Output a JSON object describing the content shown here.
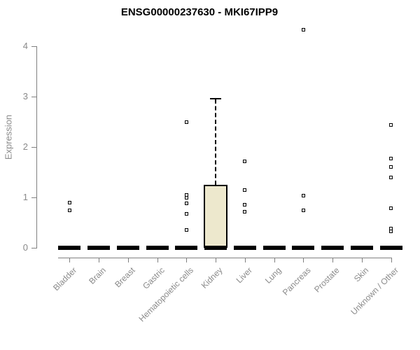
{
  "chart_data": {
    "type": "boxplot",
    "title": "ENSG00000237630 - MKI67IPP9",
    "ylabel": "Expression",
    "xlabel": "",
    "ylim": [
      0,
      4
    ],
    "yticks": [
      0,
      1,
      2,
      3,
      4
    ],
    "grid": false,
    "legend": false,
    "categories": [
      "Bladder",
      "Brain",
      "Breast",
      "Gastric",
      "Hematopoietic cells",
      "Kidney",
      "Liver",
      "Lung",
      "Pancreas",
      "Prostate",
      "Skin",
      "Unknown / Other"
    ],
    "boxes": [
      {
        "category": "Bladder",
        "median": 0,
        "q1": 0,
        "q3": 0,
        "whisker_low": 0,
        "whisker_high": 0,
        "outliers": [
          0.9,
          0.75
        ]
      },
      {
        "category": "Brain",
        "median": 0,
        "q1": 0,
        "q3": 0,
        "whisker_low": 0,
        "whisker_high": 0,
        "outliers": []
      },
      {
        "category": "Breast",
        "median": 0,
        "q1": 0,
        "q3": 0,
        "whisker_low": 0,
        "whisker_high": 0,
        "outliers": []
      },
      {
        "category": "Gastric",
        "median": 0,
        "q1": 0,
        "q3": 0,
        "whisker_low": 0,
        "whisker_high": 0,
        "outliers": []
      },
      {
        "category": "Hematopoietic cells",
        "median": 0,
        "q1": 0,
        "q3": 0,
        "whisker_low": 0,
        "whisker_high": 0,
        "outliers": [
          2.5,
          1.05,
          1.0,
          0.88,
          0.67,
          0.36
        ]
      },
      {
        "category": "Kidney",
        "median": 0,
        "q1": 0,
        "q3": 1.25,
        "whisker_low": 0,
        "whisker_high": 2.95,
        "outliers": []
      },
      {
        "category": "Liver",
        "median": 0,
        "q1": 0,
        "q3": 0,
        "whisker_low": 0,
        "whisker_high": 0,
        "outliers": [
          1.71,
          1.14,
          0.85,
          0.72
        ]
      },
      {
        "category": "Lung",
        "median": 0,
        "q1": 0,
        "q3": 0,
        "whisker_low": 0,
        "whisker_high": 0,
        "outliers": []
      },
      {
        "category": "Pancreas",
        "median": 0,
        "q1": 0,
        "q3": 0,
        "whisker_low": 0,
        "whisker_high": 0,
        "outliers": [
          4.33,
          1.03,
          0.74
        ]
      },
      {
        "category": "Prostate",
        "median": 0,
        "q1": 0,
        "q3": 0,
        "whisker_low": 0,
        "whisker_high": 0,
        "outliers": []
      },
      {
        "category": "Skin",
        "median": 0,
        "q1": 0,
        "q3": 0,
        "whisker_low": 0,
        "whisker_high": 0,
        "outliers": []
      },
      {
        "category": "Unknown / Other",
        "median": 0,
        "q1": 0,
        "q3": 0,
        "whisker_low": 0,
        "whisker_high": 0,
        "outliers": [
          2.44,
          1.77,
          1.6,
          1.4,
          0.78,
          0.38,
          0.32
        ]
      }
    ],
    "colors": {
      "box_fill": "#ede8cd",
      "box_border": "#000000",
      "marker": "#000000",
      "axis": "#808080",
      "axis_text": "#8a8a8a",
      "title_text": "#000000"
    }
  }
}
